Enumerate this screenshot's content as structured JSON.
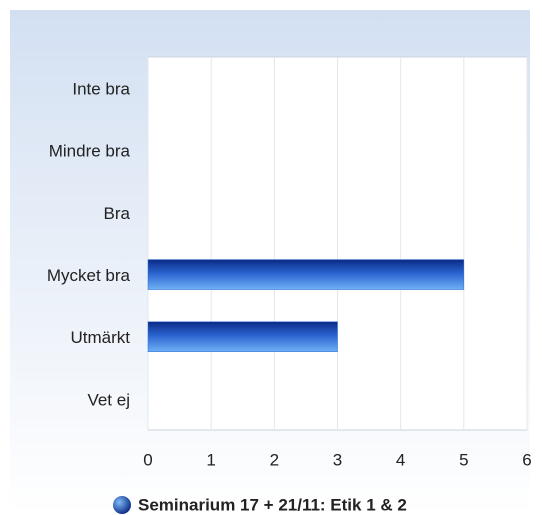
{
  "chart_data": {
    "type": "bar",
    "orientation": "horizontal",
    "categories": [
      "Inte bra",
      "Mindre bra",
      "Bra",
      "Mycket bra",
      "Utmärkt",
      "Vet ej"
    ],
    "series": [
      {
        "name": "Seminarium 17 + 21/11: Etik 1 & 2",
        "color": "#2f6fd6",
        "values": [
          0,
          0,
          0,
          5,
          3,
          0
        ]
      }
    ],
    "xlim": [
      0,
      6
    ],
    "xticks": [
      0,
      1,
      2,
      3,
      4,
      5,
      6
    ],
    "grid": true,
    "legend": "bottom"
  }
}
